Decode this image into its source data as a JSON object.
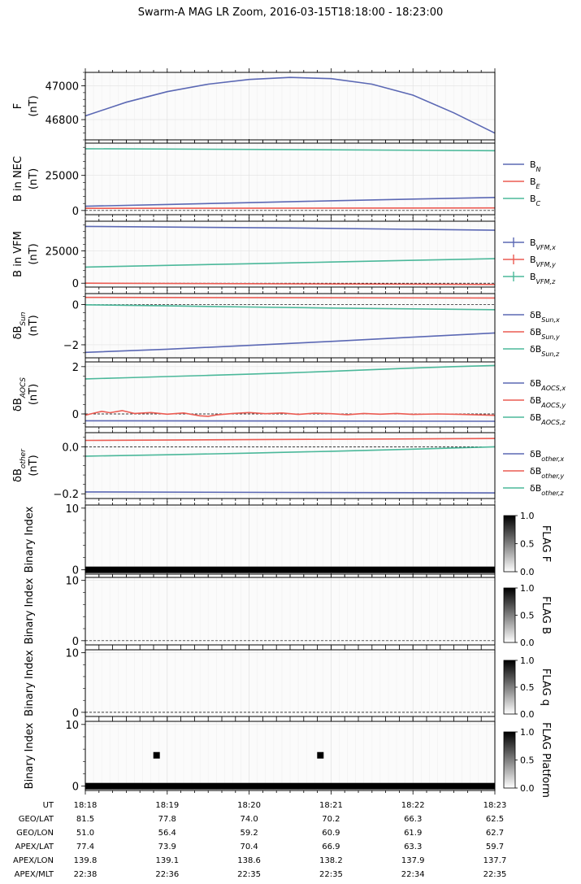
{
  "title": "Swarm-A MAG LR Zoom, 2016-03-15T18:18:00 - 18:23:00",
  "colors": {
    "blue": "#5b68b4",
    "red": "#eb5b52",
    "teal": "#4bb89a",
    "dark_red": "#8b1a1a"
  },
  "chart_data": [
    {
      "type": "line",
      "ylabel": [
        "F",
        "(nT)"
      ],
      "yticks": [
        {
          "value": 46800,
          "label": "46800"
        },
        {
          "value": 47000,
          "label": "47000"
        }
      ],
      "ylim": [
        46680,
        47080
      ],
      "series": [
        {
          "name": "",
          "color": "blue",
          "points": [
            [
              0,
              46822
            ],
            [
              0.5,
              46903
            ],
            [
              1,
              46966
            ],
            [
              1.5,
              47010
            ],
            [
              2,
              47038
            ],
            [
              2.5,
              47050
            ],
            [
              3,
              47043
            ],
            [
              3.5,
              47010
            ],
            [
              4,
              46945
            ],
            [
              4.5,
              46840
            ],
            [
              5,
              46720
            ]
          ]
        }
      ],
      "legend": []
    },
    {
      "type": "line",
      "ylabel": [
        "B in NEC",
        "(nT)"
      ],
      "yticks": [
        {
          "value": 0,
          "label": "0"
        },
        {
          "value": 25000,
          "label": "25000"
        }
      ],
      "ylim": [
        -3000,
        48000
      ],
      "series": [
        {
          "name": "B_N",
          "color": "blue",
          "points": [
            [
              0,
              3000
            ],
            [
              1,
              4300
            ],
            [
              2,
              5600
            ],
            [
              3,
              6900
            ],
            [
              4,
              8100
            ],
            [
              5,
              9300
            ]
          ]
        },
        {
          "name": "B_E",
          "color": "red",
          "points": [
            [
              0,
              1500
            ],
            [
              5,
              1800
            ]
          ]
        },
        {
          "name": "B_C",
          "color": "teal",
          "points": [
            [
              0,
              44000
            ],
            [
              2.5,
              43400
            ],
            [
              5,
              42600
            ]
          ]
        }
      ],
      "legend": [
        {
          "base": "B",
          "sub": "N",
          "color": "blue"
        },
        {
          "base": "B",
          "sub": "E",
          "color": "red"
        },
        {
          "base": "B",
          "sub": "C",
          "color": "teal"
        }
      ]
    },
    {
      "type": "line",
      "ylabel": [
        "B in VFM",
        "(nT)"
      ],
      "yticks": [
        {
          "value": 0,
          "label": "0"
        },
        {
          "value": 25000,
          "label": "25000"
        }
      ],
      "ylim": [
        -3000,
        48000
      ],
      "series": [
        {
          "name": "B_VFM,x",
          "color": "blue",
          "points": [
            [
              0,
              44000
            ],
            [
              2.5,
              42800
            ],
            [
              5,
              41000
            ]
          ]
        },
        {
          "name": "B_VFM,y",
          "color": "red",
          "points": [
            [
              0,
              0
            ],
            [
              5,
              -1000
            ]
          ]
        },
        {
          "name": "B_VFM,z",
          "color": "teal",
          "points": [
            [
              0,
              12500
            ],
            [
              1,
              13800
            ],
            [
              2,
              15100
            ],
            [
              3,
              16400
            ],
            [
              4,
              17700
            ],
            [
              5,
              19000
            ]
          ]
        }
      ],
      "legend": [
        {
          "base": "B",
          "sub": "VFM,x",
          "color": "blue",
          "errorbar": true
        },
        {
          "base": "B",
          "sub": "VFM,y",
          "color": "red",
          "errorbar": true
        },
        {
          "base": "B",
          "sub": "VFM,z",
          "color": "teal",
          "errorbar": true
        }
      ]
    },
    {
      "type": "line",
      "ylabel": [
        "δB_Sun",
        "(nT)"
      ],
      "yticks": [
        {
          "value": -2,
          "label": "−2"
        },
        {
          "value": 0,
          "label": "0"
        }
      ],
      "ylim": [
        -2.65,
        0.55
      ],
      "series": [
        {
          "name": "δB_Sun,x",
          "color": "blue",
          "points": [
            [
              0,
              -2.38
            ],
            [
              1,
              -2.22
            ],
            [
              2,
              -2.03
            ],
            [
              3,
              -1.83
            ],
            [
              4,
              -1.62
            ],
            [
              5,
              -1.41
            ]
          ]
        },
        {
          "name": "δB_Sun,y",
          "color": "red",
          "points": [
            [
              0,
              0.36
            ],
            [
              5,
              0.33
            ]
          ]
        },
        {
          "name": "δB_Sun,z",
          "color": "teal",
          "points": [
            [
              0,
              -0.01
            ],
            [
              1,
              -0.06
            ],
            [
              2,
              -0.12
            ],
            [
              3,
              -0.17
            ],
            [
              4,
              -0.21
            ],
            [
              5,
              -0.25
            ]
          ]
        }
      ],
      "legend": [
        {
          "base": "δB",
          "sub": "Sun,x",
          "color": "blue"
        },
        {
          "base": "δB",
          "sub": "Sun,y",
          "color": "red"
        },
        {
          "base": "δB",
          "sub": "Sun,z",
          "color": "teal"
        }
      ]
    },
    {
      "type": "line",
      "ylabel": [
        "δB_AOCS",
        "(nT)"
      ],
      "yticks": [
        {
          "value": 0,
          "label": "0"
        },
        {
          "value": 2,
          "label": "2"
        }
      ],
      "ylim": [
        -0.55,
        2.2
      ],
      "series": [
        {
          "name": "δB_AOCS,x",
          "color": "blue",
          "points": [
            [
              0,
              -0.29
            ],
            [
              5,
              -0.31
            ]
          ]
        },
        {
          "name": "δB_AOCS,y",
          "color": "red",
          "points": [
            [
              0,
              -0.05
            ],
            [
              0.1,
              0.03
            ],
            [
              0.2,
              0.11
            ],
            [
              0.3,
              0.05
            ],
            [
              0.45,
              0.14
            ],
            [
              0.6,
              0.02
            ],
            [
              0.8,
              0.06
            ],
            [
              1,
              -0.01
            ],
            [
              1.2,
              0.04
            ],
            [
              1.4,
              -0.08
            ],
            [
              1.5,
              -0.1
            ],
            [
              1.6,
              -0.04
            ],
            [
              1.8,
              0.02
            ],
            [
              2,
              0.06
            ],
            [
              2.2,
              0.01
            ],
            [
              2.4,
              0.04
            ],
            [
              2.6,
              -0.02
            ],
            [
              2.8,
              0.03
            ],
            [
              3,
              0.01
            ],
            [
              3.2,
              -0.03
            ],
            [
              3.4,
              0.02
            ],
            [
              3.6,
              -0.01
            ],
            [
              3.8,
              0.02
            ],
            [
              4,
              -0.02
            ],
            [
              4.3,
              0.0
            ],
            [
              4.6,
              -0.02
            ],
            [
              5,
              -0.06
            ]
          ]
        },
        {
          "name": "δB_AOCS,z",
          "color": "teal",
          "points": [
            [
              0,
              1.48
            ],
            [
              0.5,
              1.53
            ],
            [
              1,
              1.58
            ],
            [
              1.5,
              1.63
            ],
            [
              2,
              1.68
            ],
            [
              2.5,
              1.74
            ],
            [
              3,
              1.8
            ],
            [
              3.5,
              1.87
            ],
            [
              4,
              1.94
            ],
            [
              4.5,
              2.0
            ],
            [
              5,
              2.05
            ]
          ]
        }
      ],
      "legend": [
        {
          "base": "δB",
          "sub": "AOCS,x",
          "color": "blue"
        },
        {
          "base": "δB",
          "sub": "AOCS,y",
          "color": "red"
        },
        {
          "base": "δB",
          "sub": "AOCS,z",
          "color": "teal"
        }
      ]
    },
    {
      "type": "line",
      "ylabel": [
        "δB_other",
        "(nT)"
      ],
      "yticks": [
        {
          "value": -0.2,
          "label": "−0.2"
        },
        {
          "value": 0,
          "label": "0.0"
        }
      ],
      "ylim": [
        -0.22,
        0.06
      ],
      "series": [
        {
          "name": "δB_other,x",
          "color": "blue",
          "points": [
            [
              0,
              -0.192
            ],
            [
              2.5,
              -0.194
            ],
            [
              5,
              -0.196
            ]
          ]
        },
        {
          "name": "δB_other,y",
          "color": "red",
          "points": [
            [
              0,
              0.027
            ],
            [
              5,
              0.035
            ]
          ]
        },
        {
          "name": "δB_other,z",
          "color": "teal",
          "points": [
            [
              0,
              -0.04
            ],
            [
              1,
              -0.034
            ],
            [
              2,
              -0.027
            ],
            [
              3,
              -0.019
            ],
            [
              4,
              -0.01
            ],
            [
              5,
              0.0
            ]
          ]
        }
      ],
      "legend": [
        {
          "base": "δB",
          "sub": "other,x",
          "color": "blue"
        },
        {
          "base": "δB",
          "sub": "other,y",
          "color": "red"
        },
        {
          "base": "δB",
          "sub": "other,z",
          "color": "teal"
        }
      ]
    },
    {
      "type": "heatmap",
      "ylabel": [
        "Binary Index"
      ],
      "yticks": [
        {
          "value": 0,
          "label": "0"
        },
        {
          "value": 10,
          "label": "10"
        }
      ],
      "ylim": [
        -0.7,
        10.5
      ],
      "set_bits": [
        0
      ],
      "points": [],
      "colorbar": {
        "label": "FLAG F",
        "ticks": [
          "0.0",
          "0.5",
          "1.0"
        ]
      }
    },
    {
      "type": "heatmap",
      "ylabel": [
        "Binary Index"
      ],
      "yticks": [
        {
          "value": 0,
          "label": "0"
        },
        {
          "value": 10,
          "label": "10"
        }
      ],
      "ylim": [
        -0.7,
        10.5
      ],
      "set_bits": [],
      "points": [],
      "colorbar": {
        "label": "FLAG B",
        "ticks": [
          "0.0",
          "0.5",
          "1.0"
        ]
      }
    },
    {
      "type": "heatmap",
      "ylabel": [
        "Binary Index"
      ],
      "yticks": [
        {
          "value": 0,
          "label": "0"
        },
        {
          "value": 10,
          "label": "10"
        }
      ],
      "ylim": [
        -0.7,
        10.5
      ],
      "set_bits": [],
      "points": [],
      "colorbar": {
        "label": "FLAG q",
        "ticks": [
          "0.0",
          "0.5",
          "1.0"
        ]
      }
    },
    {
      "type": "heatmap",
      "ylabel": [
        "Binary Index"
      ],
      "yticks": [
        {
          "value": 0,
          "label": "0"
        },
        {
          "value": 10,
          "label": "10"
        }
      ],
      "ylim": [
        -0.7,
        10.5
      ],
      "set_bits": [
        0
      ],
      "points": [
        {
          "x": 0.87,
          "bit": 5
        },
        {
          "x": 2.87,
          "bit": 5
        }
      ],
      "colorbar": {
        "label": "FLAG Platform",
        "ticks": [
          "0.0",
          "0.5",
          "1.0"
        ]
      }
    }
  ],
  "x_axis": {
    "range": [
      0,
      5
    ],
    "table": [
      {
        "label": "UT",
        "values": [
          "18:18",
          "18:19",
          "18:20",
          "18:21",
          "18:22",
          "18:23"
        ]
      },
      {
        "label": "GEO/LAT",
        "values": [
          "81.5",
          "77.8",
          "74.0",
          "70.2",
          "66.3",
          "62.5"
        ]
      },
      {
        "label": "GEO/LON",
        "values": [
          "51.0",
          "56.4",
          "59.2",
          "60.9",
          "61.9",
          "62.7"
        ]
      },
      {
        "label": "APEX/LAT",
        "values": [
          "77.4",
          "73.9",
          "70.4",
          "66.9",
          "63.3",
          "59.7"
        ]
      },
      {
        "label": "APEX/LON",
        "values": [
          "139.8",
          "139.1",
          "138.6",
          "138.2",
          "137.9",
          "137.7"
        ]
      },
      {
        "label": "APEX/MLT",
        "values": [
          "22:38",
          "22:36",
          "22:35",
          "22:35",
          "22:34",
          "22:35"
        ]
      }
    ]
  }
}
